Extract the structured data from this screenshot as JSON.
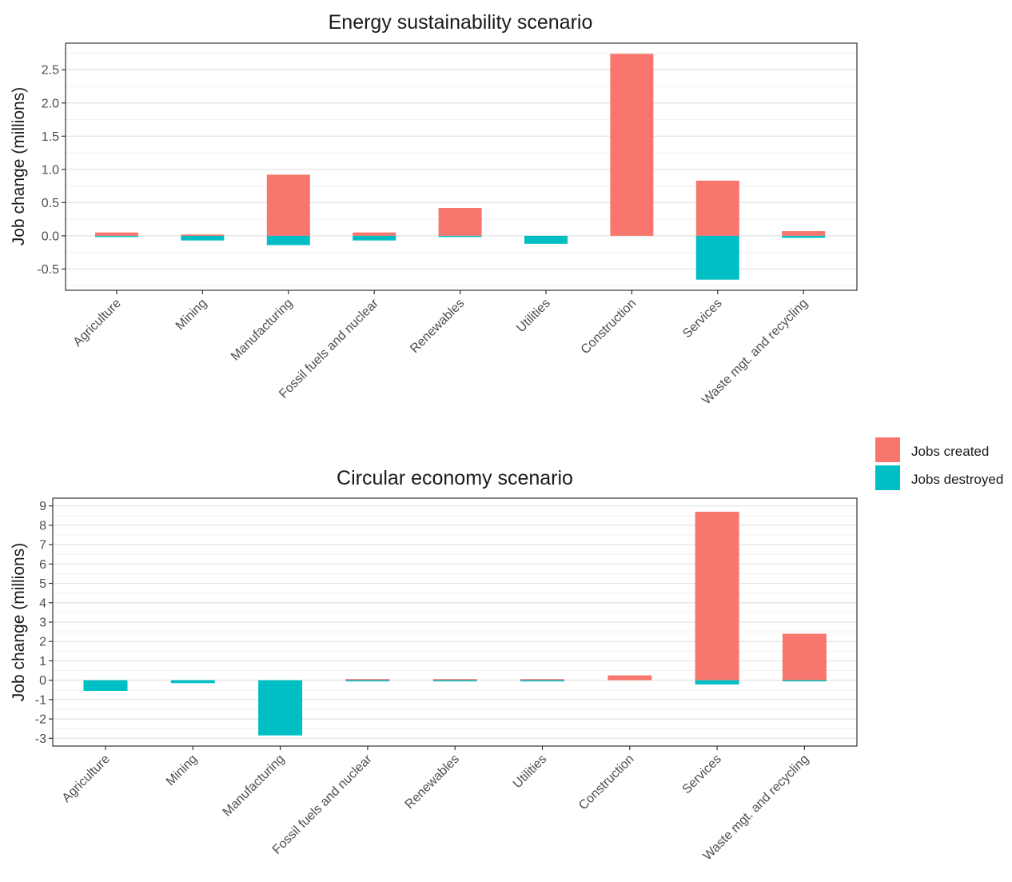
{
  "chart_data": [
    {
      "type": "bar",
      "title": "Energy sustainability scenario",
      "ylabel": "Job change (millions)",
      "xlabel": "",
      "ylim": [
        -0.82,
        2.9
      ],
      "yticks": [
        -0.5,
        0.0,
        0.5,
        1.0,
        1.5,
        2.0,
        2.5
      ],
      "ytick_labels": [
        "-0.5",
        "0.0",
        "0.5",
        "1.0",
        "1.5",
        "2.0",
        "2.5"
      ],
      "categories": [
        "Agriculture",
        "Mining",
        "Manufacturing",
        "Fossil fuels and nuclear",
        "Renewables",
        "Utilities",
        "Construction",
        "Services",
        "Waste mgt. and recycling"
      ],
      "series": [
        {
          "name": "Jobs created",
          "color": "#F8766D",
          "values": [
            0.05,
            0.02,
            0.92,
            0.05,
            0.42,
            0.0,
            2.74,
            0.83,
            0.07
          ]
        },
        {
          "name": "Jobs destroyed",
          "color": "#00BFC4",
          "values": [
            -0.01,
            -0.07,
            -0.14,
            -0.07,
            -0.01,
            -0.12,
            0.0,
            -0.66,
            -0.03
          ]
        }
      ],
      "grid": true,
      "legend": "right"
    },
    {
      "type": "bar",
      "title": "Circular economy scenario",
      "ylabel": "Job change (millions)",
      "xlabel": "",
      "ylim": [
        -3.4,
        9.4
      ],
      "yticks": [
        -3,
        -2,
        -1,
        0,
        1,
        2,
        3,
        4,
        5,
        6,
        7,
        8,
        9
      ],
      "ytick_labels": [
        "-3",
        "-2",
        "-1",
        "0",
        "1",
        "2",
        "3",
        "4",
        "5",
        "6",
        "7",
        "8",
        "9"
      ],
      "categories": [
        "Agriculture",
        "Mining",
        "Manufacturing",
        "Fossil fuels and nuclear",
        "Renewables",
        "Utilities",
        "Construction",
        "Services",
        "Waste mgt. and recycling"
      ],
      "series": [
        {
          "name": "Jobs created",
          "color": "#F8766D",
          "values": [
            0.0,
            0.0,
            0.0,
            0.02,
            0.03,
            0.02,
            0.25,
            8.7,
            2.4
          ]
        },
        {
          "name": "Jobs destroyed",
          "color": "#00BFC4",
          "values": [
            -0.55,
            -0.15,
            -2.85,
            -0.02,
            -0.03,
            -0.02,
            0.0,
            -0.22,
            -0.05
          ]
        }
      ],
      "grid": true,
      "legend": "right"
    }
  ],
  "legend": {
    "items": [
      {
        "label": "Jobs created",
        "color": "#F8766D"
      },
      {
        "label": "Jobs destroyed",
        "color": "#00BFC4"
      }
    ]
  }
}
